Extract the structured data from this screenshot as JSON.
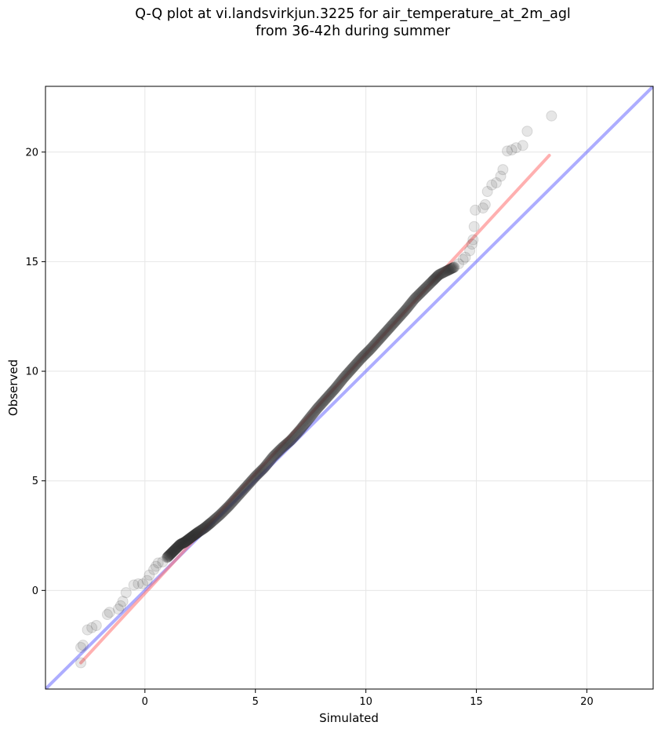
{
  "chart_data": {
    "type": "scatter",
    "title_line1": "Q-Q plot at vi.landsvirkjun.3225 for air_temperature_at_2m_agl",
    "title_line2": "from 36-42h during summer",
    "xlabel": "Simulated",
    "ylabel": "Observed",
    "xlim": [
      -4.5,
      23
    ],
    "ylim": [
      -4.5,
      23
    ],
    "xticks": [
      0,
      5,
      10,
      15,
      20
    ],
    "yticks": [
      0,
      5,
      10,
      15,
      20
    ],
    "grid": true,
    "identity_line": {
      "from": [
        -4.5,
        -4.5
      ],
      "to": [
        23,
        23
      ],
      "color": "#6a6aff"
    },
    "fit_line": {
      "from": [
        -2.9,
        -3.3
      ],
      "to": [
        18.3,
        19.85
      ],
      "color": "#ff6f6f"
    },
    "point_color": "#333333",
    "points": [
      [
        -2.9,
        -3.3
      ],
      [
        -2.9,
        -2.6
      ],
      [
        -2.8,
        -2.5
      ],
      [
        -2.6,
        -1.8
      ],
      [
        -2.4,
        -1.7
      ],
      [
        -2.2,
        -1.6
      ],
      [
        -1.7,
        -1.1
      ],
      [
        -1.6,
        -1.0
      ],
      [
        -1.2,
        -0.85
      ],
      [
        -1.1,
        -0.7
      ],
      [
        -1.0,
        -0.5
      ],
      [
        -0.85,
        -0.1
      ],
      [
        -0.5,
        0.25
      ],
      [
        -0.3,
        0.3
      ],
      [
        -0.1,
        0.3
      ],
      [
        0.1,
        0.45
      ],
      [
        0.2,
        0.7
      ],
      [
        0.4,
        0.95
      ],
      [
        0.5,
        1.1
      ],
      [
        0.6,
        1.25
      ],
      [
        0.8,
        1.3
      ],
      [
        1.0,
        1.5
      ],
      [
        1.2,
        1.7
      ],
      [
        1.4,
        1.9
      ],
      [
        1.6,
        2.1
      ],
      [
        1.8,
        2.2
      ],
      [
        2.0,
        2.35
      ],
      [
        2.2,
        2.5
      ],
      [
        2.4,
        2.65
      ],
      [
        2.7,
        2.85
      ],
      [
        3.0,
        3.1
      ],
      [
        3.4,
        3.45
      ],
      [
        3.8,
        3.85
      ],
      [
        4.2,
        4.3
      ],
      [
        4.6,
        4.75
      ],
      [
        5.0,
        5.2
      ],
      [
        5.4,
        5.6
      ],
      [
        5.8,
        6.1
      ],
      [
        6.2,
        6.5
      ],
      [
        6.6,
        6.85
      ],
      [
        7.0,
        7.3
      ],
      [
        7.4,
        7.8
      ],
      [
        7.8,
        8.3
      ],
      [
        8.2,
        8.75
      ],
      [
        8.6,
        9.2
      ],
      [
        9.0,
        9.7
      ],
      [
        9.4,
        10.15
      ],
      [
        9.8,
        10.6
      ],
      [
        10.2,
        11.0
      ],
      [
        10.6,
        11.45
      ],
      [
        11.0,
        11.9
      ],
      [
        11.4,
        12.35
      ],
      [
        11.8,
        12.8
      ],
      [
        12.2,
        13.3
      ],
      [
        12.6,
        13.7
      ],
      [
        13.0,
        14.1
      ],
      [
        13.3,
        14.4
      ],
      [
        13.7,
        14.6
      ],
      [
        14.0,
        14.75
      ],
      [
        14.2,
        14.9
      ],
      [
        14.4,
        15.1
      ],
      [
        14.5,
        15.2
      ],
      [
        14.7,
        15.5
      ],
      [
        14.8,
        15.8
      ],
      [
        14.85,
        16.0
      ],
      [
        14.9,
        16.6
      ],
      [
        14.95,
        17.35
      ],
      [
        15.3,
        17.45
      ],
      [
        15.4,
        17.6
      ],
      [
        15.5,
        18.2
      ],
      [
        15.7,
        18.5
      ],
      [
        15.9,
        18.6
      ],
      [
        16.1,
        18.9
      ],
      [
        16.2,
        19.2
      ],
      [
        16.4,
        20.05
      ],
      [
        16.6,
        20.1
      ],
      [
        16.8,
        20.2
      ],
      [
        17.1,
        20.3
      ],
      [
        17.3,
        20.95
      ],
      [
        18.4,
        21.65
      ]
    ]
  }
}
